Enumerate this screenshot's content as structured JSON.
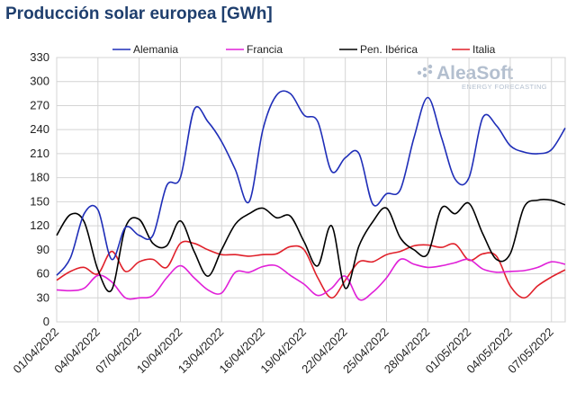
{
  "chart_data": {
    "type": "line",
    "title": "Producción solar europea [GWh]",
    "xlabel": "",
    "ylabel": "",
    "ylim": [
      0,
      330
    ],
    "yticks": [
      0,
      30,
      60,
      90,
      120,
      150,
      180,
      210,
      240,
      270,
      300,
      330
    ],
    "grid": true,
    "legend_position": "top",
    "x": [
      "01/04/2022",
      "02/04/2022",
      "03/04/2022",
      "04/04/2022",
      "05/04/2022",
      "06/04/2022",
      "07/04/2022",
      "08/04/2022",
      "09/04/2022",
      "10/04/2022",
      "11/04/2022",
      "12/04/2022",
      "13/04/2022",
      "14/04/2022",
      "15/04/2022",
      "16/04/2022",
      "17/04/2022",
      "18/04/2022",
      "19/04/2022",
      "20/04/2022",
      "21/04/2022",
      "22/04/2022",
      "23/04/2022",
      "24/04/2022",
      "25/04/2022",
      "26/04/2022",
      "27/04/2022",
      "28/04/2022",
      "29/04/2022",
      "30/04/2022",
      "01/05/2022",
      "02/05/2022",
      "03/05/2022",
      "04/05/2022",
      "05/05/2022",
      "06/05/2022",
      "07/05/2022",
      "08/05/2022"
    ],
    "xtick_labels": [
      "01/04/2022",
      "04/04/2022",
      "07/04/2022",
      "10/04/2022",
      "13/04/2022",
      "16/04/2022",
      "19/04/2022",
      "22/04/2022",
      "25/04/2022",
      "28/04/2022",
      "01/05/2022",
      "04/05/2022",
      "07/05/2022"
    ],
    "series": [
      {
        "name": "Alemania",
        "color": "#1f2eb8",
        "values": [
          58,
          80,
          135,
          140,
          78,
          118,
          108,
          108,
          170,
          180,
          265,
          250,
          225,
          190,
          150,
          240,
          283,
          285,
          258,
          250,
          188,
          205,
          210,
          147,
          160,
          165,
          230,
          280,
          230,
          178,
          180,
          255,
          245,
          220,
          212,
          210,
          215,
          242
        ]
      },
      {
        "name": "Francia",
        "color": "#e020d8",
        "values": [
          40,
          39,
          42,
          58,
          50,
          30,
          30,
          33,
          55,
          70,
          55,
          40,
          36,
          62,
          62,
          69,
          70,
          58,
          47,
          33,
          42,
          57,
          28,
          37,
          55,
          78,
          72,
          68,
          70,
          74,
          78,
          66,
          62,
          63,
          64,
          68,
          75,
          72
        ]
      },
      {
        "name": "Pen. Ibérica",
        "color": "#000000",
        "values": [
          108,
          134,
          125,
          65,
          40,
          118,
          128,
          98,
          95,
          126,
          88,
          57,
          90,
          122,
          135,
          142,
          130,
          132,
          100,
          70,
          120,
          42,
          95,
          125,
          142,
          105,
          90,
          85,
          142,
          135,
          148,
          110,
          78,
          85,
          143,
          152,
          152,
          146
        ]
      },
      {
        "name": "Italia",
        "color": "#e0202a",
        "values": [
          52,
          63,
          68,
          60,
          88,
          63,
          75,
          78,
          68,
          98,
          98,
          90,
          84,
          84,
          82,
          84,
          85,
          94,
          90,
          55,
          30,
          52,
          75,
          75,
          84,
          88,
          95,
          96,
          93,
          97,
          77,
          85,
          82,
          45,
          30,
          45,
          56,
          65
        ]
      }
    ]
  },
  "logo": {
    "main": "AleaSoft",
    "sub": "ENERGY FORECASTING"
  }
}
